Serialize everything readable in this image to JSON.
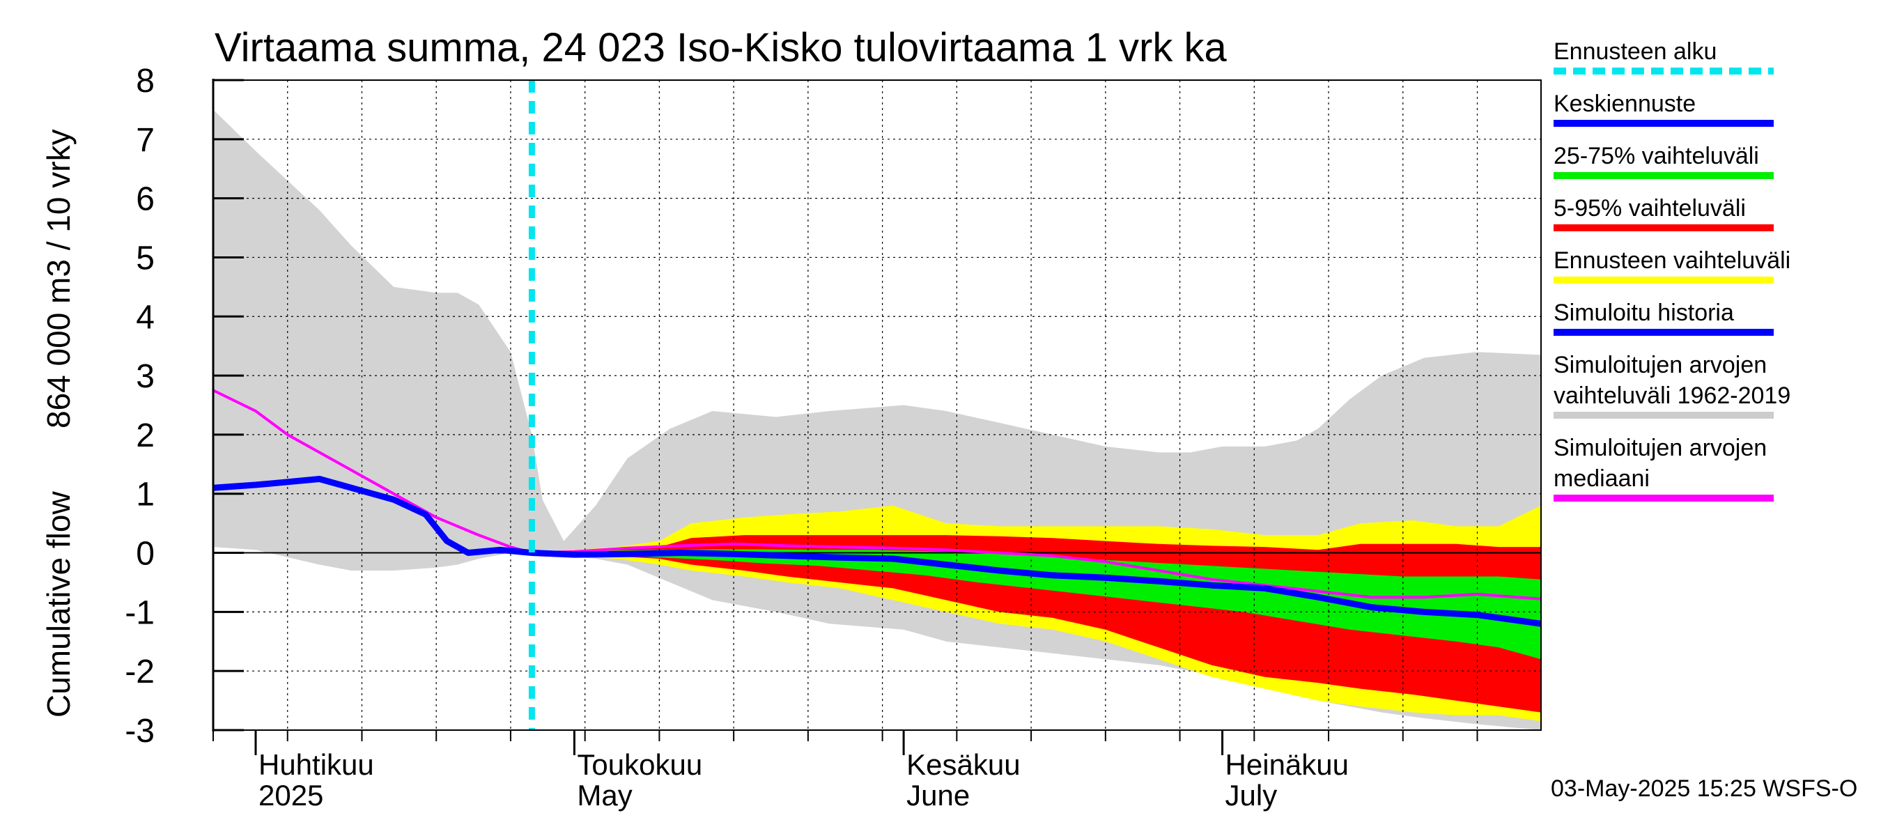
{
  "chart_data": {
    "type": "area",
    "title": "Virtaama summa, 24 023 Iso-Kisko tulovirtaama 1 vrk ka",
    "ylabel": [
      "Cumulative flow",
      "864 000 m3 / 10 vrky"
    ],
    "ylim": [
      -3,
      8
    ],
    "yticks": [
      "8",
      "7",
      "6",
      "5",
      "4",
      "3",
      "2",
      "1",
      "0",
      "-1",
      "-2",
      "-3"
    ],
    "ytick_values": [
      8,
      7,
      6,
      5,
      4,
      3,
      2,
      1,
      0,
      -1,
      -2,
      -3
    ],
    "xlim": [
      "2025-03-28",
      "2025-07-31"
    ],
    "grid": true,
    "month_labels": [
      {
        "line1": "Huhtikuu",
        "line2": "2025",
        "date": "2025-04-01"
      },
      {
        "line1": "Toukokuu",
        "line2": "May",
        "date": "2025-05-01"
      },
      {
        "line1": "Kesäkuu",
        "line2": "June",
        "date": "2025-06-01"
      },
      {
        "line1": "Heinäkuu",
        "line2": "July",
        "date": "2025-07-01"
      }
    ],
    "forecast_start": "2025-04-27",
    "legend_position": "right",
    "legend": [
      {
        "label": "Ennusteen alku",
        "color": "#00e5ee",
        "style": "dashed"
      },
      {
        "label": "Keskiennuste",
        "color": "#0000ff",
        "style": "solid"
      },
      {
        "label": "25-75% vaihteluväli",
        "color": "#00ee00",
        "style": "solid"
      },
      {
        "label": "5-95% vaihteluväli",
        "color": "#ff0000",
        "style": "solid"
      },
      {
        "label": "Ennusteen vaihteluväli",
        "color": "#ffff00",
        "style": "solid"
      },
      {
        "label": "Simuloitu historia",
        "color": "#0000ff",
        "style": "solid"
      },
      {
        "label": "Simuloitujen arvojen\nvaihteluväli 1962-2019",
        "color": "#cccccc",
        "style": "solid"
      },
      {
        "label": "Simuloitujen arvojen\nmediaani",
        "color": "#ff00ff",
        "style": "solid"
      }
    ],
    "series": [
      {
        "name": "Simuloitujen arvojen vaihteluväli 1962-2019",
        "kind": "band",
        "color": "#d3d3d3",
        "x": [
          "2025-03-28",
          "2025-04-01",
          "2025-04-07",
          "2025-04-10",
          "2025-04-14",
          "2025-04-18",
          "2025-04-20",
          "2025-04-22",
          "2025-04-25",
          "2025-04-27",
          "2025-04-28",
          "2025-04-30",
          "2025-05-03",
          "2025-05-06",
          "2025-05-10",
          "2025-05-14",
          "2025-05-20",
          "2025-05-25",
          "2025-06-01",
          "2025-06-05",
          "2025-06-10",
          "2025-06-15",
          "2025-06-20",
          "2025-06-25",
          "2025-06-28",
          "2025-07-01",
          "2025-07-05",
          "2025-07-08",
          "2025-07-10",
          "2025-07-13",
          "2025-07-16",
          "2025-07-20",
          "2025-07-25",
          "2025-07-31"
        ],
        "upper": [
          7.5,
          6.8,
          5.8,
          5.2,
          4.5,
          4.4,
          4.4,
          4.2,
          3.4,
          2.0,
          0.9,
          0.2,
          0.8,
          1.6,
          2.1,
          2.4,
          2.3,
          2.4,
          2.5,
          2.4,
          2.2,
          2.0,
          1.8,
          1.7,
          1.7,
          1.8,
          1.8,
          1.9,
          2.1,
          2.6,
          3.0,
          3.3,
          3.4,
          3.35
        ],
        "lower": [
          0.1,
          0.05,
          -0.2,
          -0.3,
          -0.3,
          -0.25,
          -0.2,
          -0.1,
          0.0,
          0.0,
          0.0,
          -0.05,
          -0.1,
          -0.2,
          -0.5,
          -0.8,
          -1.0,
          -1.2,
          -1.3,
          -1.5,
          -1.6,
          -1.7,
          -1.8,
          -1.9,
          -2.0,
          -2.1,
          -2.2,
          -2.4,
          -2.5,
          -2.6,
          -2.7,
          -2.8,
          -2.9,
          -3.0
        ]
      },
      {
        "name": "Ennusteen vaihteluväli",
        "kind": "band",
        "color": "#ffff00",
        "x": [
          "2025-04-27",
          "2025-05-01",
          "2025-05-05",
          "2025-05-09",
          "2025-05-12",
          "2025-05-17",
          "2025-05-21",
          "2025-05-26",
          "2025-05-31",
          "2025-06-05",
          "2025-06-10",
          "2025-06-15",
          "2025-06-20",
          "2025-06-25",
          "2025-06-30",
          "2025-07-05",
          "2025-07-10",
          "2025-07-14",
          "2025-07-19",
          "2025-07-23",
          "2025-07-27",
          "2025-07-31"
        ],
        "upper": [
          0.0,
          0.05,
          0.1,
          0.2,
          0.5,
          0.6,
          0.65,
          0.7,
          0.8,
          0.5,
          0.45,
          0.45,
          0.45,
          0.45,
          0.4,
          0.3,
          0.3,
          0.5,
          0.55,
          0.45,
          0.45,
          0.8
        ],
        "lower": [
          0.0,
          -0.05,
          -0.1,
          -0.2,
          -0.3,
          -0.4,
          -0.5,
          -0.6,
          -0.8,
          -1.0,
          -1.2,
          -1.3,
          -1.5,
          -1.8,
          -2.1,
          -2.3,
          -2.5,
          -2.6,
          -2.7,
          -2.75,
          -2.75,
          -2.85
        ]
      },
      {
        "name": "5-95% vaihteluväli",
        "kind": "band",
        "color": "#ff0000",
        "x": [
          "2025-04-27",
          "2025-05-01",
          "2025-05-05",
          "2025-05-09",
          "2025-05-12",
          "2025-05-17",
          "2025-05-21",
          "2025-05-26",
          "2025-05-31",
          "2025-06-05",
          "2025-06-10",
          "2025-06-15",
          "2025-06-20",
          "2025-06-25",
          "2025-06-30",
          "2025-07-05",
          "2025-07-10",
          "2025-07-14",
          "2025-07-19",
          "2025-07-23",
          "2025-07-27",
          "2025-07-31"
        ],
        "upper": [
          0.0,
          0.03,
          0.06,
          0.1,
          0.25,
          0.3,
          0.3,
          0.3,
          0.3,
          0.3,
          0.28,
          0.25,
          0.2,
          0.15,
          0.12,
          0.1,
          0.05,
          0.15,
          0.15,
          0.15,
          0.1,
          0.1
        ],
        "lower": [
          0.0,
          -0.03,
          -0.06,
          -0.1,
          -0.2,
          -0.3,
          -0.4,
          -0.5,
          -0.6,
          -0.8,
          -1.0,
          -1.1,
          -1.3,
          -1.6,
          -1.9,
          -2.1,
          -2.2,
          -2.3,
          -2.4,
          -2.5,
          -2.6,
          -2.7
        ]
      },
      {
        "name": "25-75% vaihteluväli",
        "kind": "band",
        "color": "#00ee00",
        "x": [
          "2025-04-27",
          "2025-05-01",
          "2025-05-05",
          "2025-05-09",
          "2025-05-14",
          "2025-05-19",
          "2025-05-24",
          "2025-05-29",
          "2025-06-03",
          "2025-06-08",
          "2025-06-13",
          "2025-06-18",
          "2025-06-23",
          "2025-06-28",
          "2025-07-03",
          "2025-07-08",
          "2025-07-13",
          "2025-07-18",
          "2025-07-23",
          "2025-07-27",
          "2025-07-31"
        ],
        "upper": [
          0.0,
          0.02,
          0.04,
          0.05,
          0.06,
          0.06,
          0.05,
          0.05,
          0.03,
          0.0,
          -0.05,
          -0.1,
          -0.15,
          -0.2,
          -0.25,
          -0.3,
          -0.35,
          -0.4,
          -0.4,
          -0.4,
          -0.45
        ],
        "lower": [
          0.0,
          -0.02,
          -0.04,
          -0.08,
          -0.12,
          -0.18,
          -0.22,
          -0.3,
          -0.38,
          -0.5,
          -0.6,
          -0.7,
          -0.8,
          -0.9,
          -1.0,
          -1.15,
          -1.3,
          -1.4,
          -1.5,
          -1.6,
          -1.8
        ]
      },
      {
        "name": "Simuloitujen arvojen mediaani",
        "kind": "line",
        "color": "#ff00ff",
        "width": 4,
        "x": [
          "2025-03-28",
          "2025-04-01",
          "2025-04-04",
          "2025-04-07",
          "2025-04-10",
          "2025-04-14",
          "2025-04-18",
          "2025-04-22",
          "2025-04-25",
          "2025-04-27",
          "2025-05-01",
          "2025-05-06",
          "2025-05-11",
          "2025-05-16",
          "2025-05-21",
          "2025-05-26",
          "2025-05-31",
          "2025-06-05",
          "2025-06-10",
          "2025-06-15",
          "2025-06-20",
          "2025-06-25",
          "2025-06-30",
          "2025-07-05",
          "2025-07-10",
          "2025-07-15",
          "2025-07-20",
          "2025-07-25",
          "2025-07-31"
        ],
        "y": [
          2.75,
          2.4,
          2.0,
          1.7,
          1.4,
          1.0,
          0.6,
          0.3,
          0.1,
          0.0,
          0.02,
          0.08,
          0.12,
          0.15,
          0.12,
          0.1,
          0.08,
          0.05,
          0.0,
          -0.05,
          -0.15,
          -0.3,
          -0.45,
          -0.55,
          -0.65,
          -0.75,
          -0.75,
          -0.7,
          -0.78
        ]
      },
      {
        "name": "Keskiennuste",
        "kind": "line",
        "color": "#0000ff",
        "width": 9,
        "x": [
          "2025-03-28",
          "2025-04-01",
          "2025-04-04",
          "2025-04-07",
          "2025-04-10",
          "2025-04-14",
          "2025-04-17",
          "2025-04-19",
          "2025-04-21",
          "2025-04-24",
          "2025-04-27",
          "2025-05-01",
          "2025-05-06",
          "2025-05-11",
          "2025-05-16",
          "2025-05-21",
          "2025-05-26",
          "2025-05-31",
          "2025-06-05",
          "2025-06-10",
          "2025-06-15",
          "2025-06-20",
          "2025-06-25",
          "2025-06-30",
          "2025-07-05",
          "2025-07-10",
          "2025-07-15",
          "2025-07-20",
          "2025-07-25",
          "2025-07-31"
        ],
        "y": [
          1.1,
          1.15,
          1.2,
          1.25,
          1.1,
          0.9,
          0.65,
          0.2,
          0.0,
          0.05,
          0.0,
          -0.03,
          -0.02,
          0.0,
          -0.02,
          -0.05,
          -0.08,
          -0.1,
          -0.2,
          -0.3,
          -0.38,
          -0.42,
          -0.48,
          -0.55,
          -0.6,
          -0.75,
          -0.92,
          -1.0,
          -1.05,
          -1.2
        ]
      }
    ]
  },
  "footer": {
    "timestamp": "03-May-2025 15:25 WSFS-O"
  }
}
